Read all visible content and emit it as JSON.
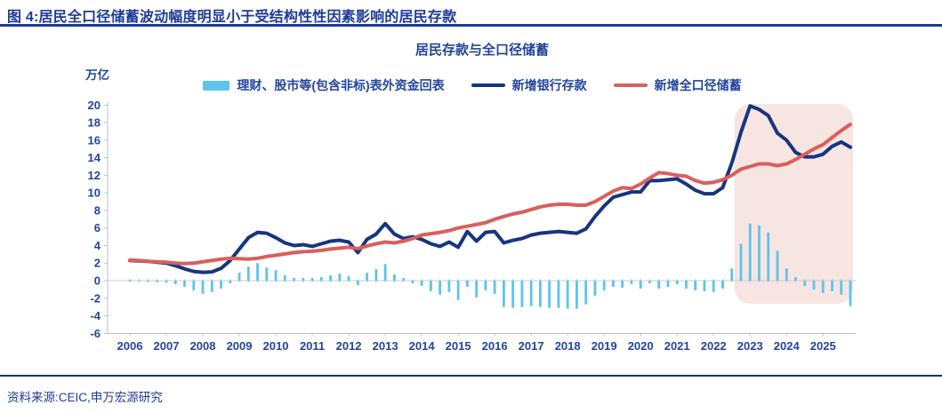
{
  "header": {
    "title": "图 4:居民全口径储蓄波动幅度明显小于受结构性性因素影响的居民存款"
  },
  "footer": {
    "source": "资料来源:CEIC,申万宏源研究"
  },
  "chart_data": {
    "type": "combo",
    "title": "居民存款与全口径储蓄",
    "y_unit": "万亿",
    "frequency": "quarterly",
    "x_start": "2006Q1",
    "x_end": "2025Q4",
    "x_tick_labels": [
      "2006",
      "2007",
      "2008",
      "2009",
      "2010",
      "2011",
      "2012",
      "2013",
      "2014",
      "2015",
      "2016",
      "2017",
      "2018",
      "2019",
      "2020",
      "2021",
      "2022",
      "2023",
      "2024",
      "2025"
    ],
    "y_ticks": [
      20,
      18,
      16,
      14,
      12,
      10,
      8,
      6,
      4,
      2,
      0,
      -2,
      -4,
      -6
    ],
    "ylim": [
      -6,
      20
    ],
    "grid": false,
    "legend_position": "top",
    "highlight": {
      "from_index": 66.3,
      "to_index": 79.3,
      "from_quarter": "2022Q3",
      "to_quarter": "2025Q4",
      "color": "#f7e5e2"
    },
    "series": [
      {
        "name": "理财、股市等(包含非标)表外资金回表",
        "type": "bar",
        "color": "#5ec4e9",
        "values": [
          0.1,
          -0.05,
          -0.1,
          -0.15,
          -0.2,
          -0.4,
          -0.7,
          -1.1,
          -1.5,
          -1.3,
          -0.9,
          -0.3,
          0.9,
          1.6,
          2.0,
          1.5,
          1.2,
          0.6,
          0.3,
          0.3,
          0.3,
          0.4,
          0.6,
          0.8,
          0.5,
          -0.5,
          0.9,
          1.3,
          1.9,
          0.7,
          0.3,
          -0.3,
          -0.6,
          -1.2,
          -1.6,
          -1.3,
          -2.2,
          -0.7,
          -1.9,
          -1.1,
          -1.5,
          -3.0,
          -3.1,
          -3.0,
          -2.9,
          -3.0,
          -3.1,
          -3.1,
          -3.2,
          -3.2,
          -2.7,
          -1.7,
          -1.1,
          -0.7,
          -0.8,
          -0.4,
          -0.9,
          -0.3,
          -0.9,
          -0.7,
          -0.4,
          -0.9,
          -1.1,
          -1.2,
          -1.3,
          -0.9,
          1.4,
          4.2,
          6.5,
          6.3,
          5.5,
          3.4,
          1.4,
          0.4,
          -0.6,
          -1.0,
          -1.4,
          -1.2,
          -1.6,
          -2.9
        ]
      },
      {
        "name": "新增银行存款",
        "type": "line",
        "color": "#17357f",
        "values": [
          2.3,
          2.25,
          2.2,
          2.1,
          2.0,
          1.7,
          1.35,
          1.05,
          0.95,
          1.0,
          1.4,
          2.3,
          3.6,
          4.9,
          5.5,
          5.4,
          4.9,
          4.3,
          4.0,
          4.1,
          3.9,
          4.2,
          4.5,
          4.6,
          4.4,
          3.2,
          4.7,
          5.3,
          6.5,
          5.3,
          4.8,
          5.0,
          4.7,
          4.2,
          3.9,
          4.4,
          3.8,
          5.6,
          4.5,
          5.5,
          5.6,
          4.3,
          4.6,
          4.8,
          5.2,
          5.4,
          5.5,
          5.6,
          5.5,
          5.4,
          5.9,
          7.3,
          8.5,
          9.5,
          9.8,
          10.1,
          10.1,
          11.4,
          11.4,
          11.5,
          11.6,
          11.0,
          10.3,
          9.9,
          9.9,
          10.6,
          13.4,
          16.9,
          19.9,
          19.5,
          18.8,
          16.8,
          16.0,
          14.6,
          14.1,
          14.1,
          14.4,
          15.3,
          15.8,
          15.2
        ]
      },
      {
        "name": "新增全口径储蓄",
        "type": "line",
        "color": "#d95f5c",
        "values": [
          2.35,
          2.3,
          2.2,
          2.15,
          2.1,
          2.0,
          1.95,
          2.0,
          2.15,
          2.3,
          2.45,
          2.55,
          2.5,
          2.45,
          2.55,
          2.75,
          2.9,
          3.05,
          3.2,
          3.3,
          3.35,
          3.45,
          3.6,
          3.7,
          3.8,
          3.65,
          3.95,
          4.2,
          4.4,
          4.3,
          4.5,
          4.8,
          5.2,
          5.35,
          5.5,
          5.7,
          6.0,
          6.2,
          6.4,
          6.6,
          7.0,
          7.3,
          7.6,
          7.8,
          8.1,
          8.4,
          8.6,
          8.7,
          8.7,
          8.6,
          8.6,
          9.0,
          9.6,
          10.2,
          10.6,
          10.5,
          11.0,
          11.7,
          12.3,
          12.2,
          12.0,
          11.9,
          11.4,
          11.1,
          11.2,
          11.5,
          12.0,
          12.7,
          13.0,
          13.3,
          13.3,
          13.1,
          13.3,
          13.8,
          14.4,
          15.0,
          15.5,
          16.3,
          17.1,
          17.8
        ]
      }
    ]
  }
}
